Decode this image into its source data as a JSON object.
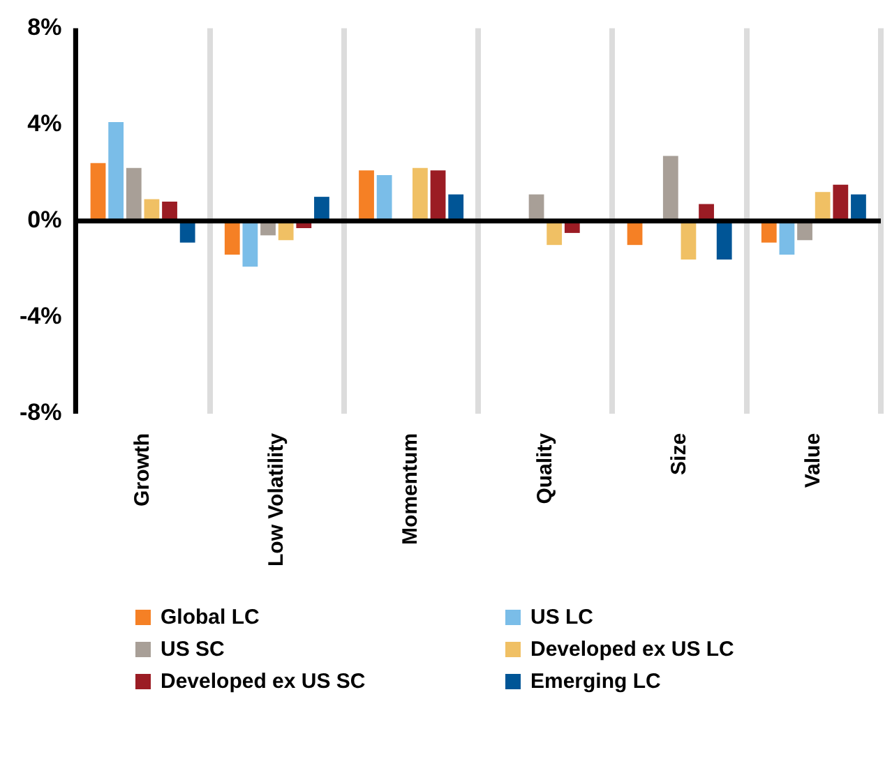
{
  "chart_data": {
    "type": "bar",
    "categories": [
      "Growth",
      "Low Volatility",
      "Momentum",
      "Quality",
      "Size",
      "Value"
    ],
    "series": [
      {
        "name": "Global LC",
        "color": "#f58025",
        "values": [
          2.4,
          -1.4,
          2.1,
          null,
          -1.0,
          -0.9
        ]
      },
      {
        "name": "US LC",
        "color": "#7abde8",
        "values": [
          4.1,
          -1.9,
          1.9,
          null,
          null,
          -1.4
        ]
      },
      {
        "name": "US SC",
        "color": "#a89f97",
        "values": [
          2.2,
          -0.6,
          null,
          1.1,
          2.7,
          -0.8
        ]
      },
      {
        "name": "Developed ex US LC",
        "color": "#f0c064",
        "values": [
          0.9,
          -0.8,
          2.2,
          -1.0,
          -1.6,
          1.2
        ]
      },
      {
        "name": "Developed ex US SC",
        "color": "#9b1c24",
        "values": [
          0.8,
          -0.3,
          2.1,
          -0.5,
          0.7,
          1.5
        ]
      },
      {
        "name": "Emerging LC",
        "color": "#005596",
        "values": [
          -0.9,
          1.0,
          1.1,
          null,
          -1.6,
          1.1
        ]
      }
    ],
    "ylim": [
      -8,
      8
    ],
    "yticks": [
      {
        "value": -8,
        "label": "-8%"
      },
      {
        "value": -4,
        "label": "-4%"
      },
      {
        "value": 0,
        "label": "0%"
      },
      {
        "value": 4,
        "label": "4%"
      },
      {
        "value": 8,
        "label": "8%"
      }
    ],
    "grid": "x",
    "legend": "bottom"
  }
}
